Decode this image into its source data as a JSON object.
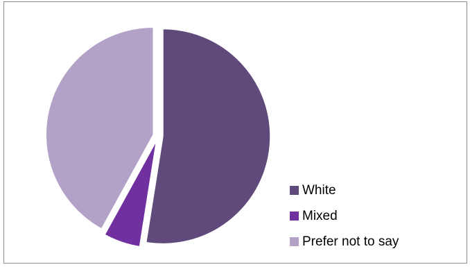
{
  "chart_data": {
    "type": "pie",
    "title": "",
    "categories": [
      "White",
      "Mixed",
      "Prefer not to say"
    ],
    "values": [
      52.5,
      5.5,
      42.0
    ],
    "colors": [
      "#604a7b",
      "#7030a0",
      "#b3a2c7"
    ],
    "exploded": true,
    "start_angle_deg": 0,
    "direction": "clockwise",
    "legend_position": "right-bottom",
    "legend": [
      {
        "label": "White",
        "color": "#604a7b"
      },
      {
        "label": "Mixed",
        "color": "#7030a0"
      },
      {
        "label": "Prefer not to say",
        "color": "#b3a2c7"
      }
    ]
  }
}
